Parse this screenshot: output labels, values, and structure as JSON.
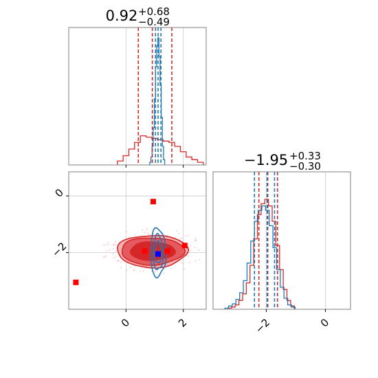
{
  "chart_data": [
    {
      "panel": "top-left",
      "type": "histogram",
      "title": {
        "value": "0.92",
        "plus": "+0.68",
        "minus": "−0.49"
      },
      "xlim": [
        -2.0,
        2.8
      ],
      "series": [
        {
          "name": "",
          "color": "#d62728",
          "bin_edges": [
            -0.3,
            -0.1,
            0.1,
            0.3,
            0.5,
            0.7,
            0.9,
            1.1,
            1.3,
            1.5,
            1.7,
            1.9,
            2.1,
            2.3,
            2.5,
            2.7
          ],
          "density": [
            0.03,
            0.07,
            0.12,
            0.17,
            0.22,
            0.21,
            0.2,
            0.19,
            0.18,
            0.17,
            0.14,
            0.1,
            0.06,
            0.04,
            0.02
          ],
          "quantile_lines": [
            0.43,
            0.92,
            1.6
          ]
        },
        {
          "name": "",
          "color": "#1f77b4",
          "bin_edges": [
            0.83,
            0.87,
            0.91,
            0.95,
            0.99,
            1.03,
            1.07,
            1.11,
            1.15,
            1.19,
            1.23,
            1.27,
            1.31,
            1.35
          ],
          "density": [
            0.02,
            0.06,
            0.14,
            0.28,
            0.5,
            0.74,
            0.9,
            0.96,
            0.82,
            0.6,
            0.36,
            0.14,
            0.04
          ],
          "quantile_lines": [
            1.03,
            1.12,
            1.22
          ]
        }
      ]
    },
    {
      "panel": "bottom-right",
      "type": "histogram",
      "title": {
        "value": "−1.95",
        "plus": "+0.33",
        "minus": "−0.30"
      },
      "xlim": [
        -3.8,
        0.85
      ],
      "xticks": [
        -2,
        0
      ],
      "xtick_labels": [
        "−2",
        "0"
      ],
      "series": [
        {
          "name": "",
          "color": "#d62728",
          "bin_edges": [
            -3.3,
            -3.175,
            -3.05,
            -2.925,
            -2.8,
            -2.675,
            -2.55,
            -2.425,
            -2.3,
            -2.175,
            -2.05,
            -1.925,
            -1.8,
            -1.675,
            -1.55,
            -1.425,
            -1.3,
            -1.175,
            -1.05
          ],
          "density": [
            0.01,
            0.02,
            0.04,
            0.08,
            0.14,
            0.24,
            0.4,
            0.64,
            0.86,
            0.96,
            1.0,
            0.94,
            0.8,
            0.58,
            0.36,
            0.18,
            0.08,
            0.03
          ],
          "quantile_lines": [
            -2.25,
            -1.95,
            -1.62
          ]
        },
        {
          "name": "",
          "color": "#1f77b4",
          "bin_edges": [
            -3.4,
            -3.275,
            -3.15,
            -3.025,
            -2.9,
            -2.775,
            -2.65,
            -2.525,
            -2.4,
            -2.275,
            -2.15,
            -2.025,
            -1.9,
            -1.775,
            -1.65,
            -1.525,
            -1.4,
            -1.275,
            -1.15,
            -1.025
          ],
          "density": [
            0.01,
            0.03,
            0.05,
            0.09,
            0.15,
            0.26,
            0.42,
            0.62,
            0.8,
            0.9,
            0.94,
            0.9,
            0.76,
            0.56,
            0.36,
            0.2,
            0.1,
            0.04,
            0.02
          ],
          "quantile_lines": [
            -2.4,
            -1.97,
            -1.72
          ]
        }
      ]
    },
    {
      "panel": "bottom-left",
      "type": "scatter",
      "xlim": [
        -2.0,
        2.8
      ],
      "ylim": [
        -4.0,
        0.85
      ],
      "xticks": [
        0,
        2
      ],
      "xtick_labels": [
        "0",
        "2"
      ],
      "yticks": [
        0,
        -2
      ],
      "ytick_labels": [
        "0",
        "−2"
      ],
      "grid": true,
      "red_contours": {
        "color": "#d62728",
        "center": [
          0.92,
          -1.95
        ],
        "levels": [
          {
            "rx": 1.23,
            "ry": 0.57,
            "fill": "#f5b2b4"
          },
          {
            "rx": 1.1,
            "ry": 0.48,
            "fill": "#e45a5f"
          },
          {
            "rx": 0.78,
            "ry": 0.32,
            "fill": "#d62728"
          }
        ]
      },
      "blue_contours": {
        "color": "#1f77b4",
        "center": [
          1.12,
          -2.0
        ],
        "levels": [
          {
            "rx": 0.27,
            "ry": 0.85
          },
          {
            "rx": 0.17,
            "ry": 0.62
          },
          {
            "rx": 0.1,
            "ry": 0.38
          }
        ]
      },
      "red_markers": {
        "color": "#ff0000",
        "points": [
          [
            0.95,
            -0.2
          ],
          [
            -1.75,
            -3.05
          ],
          [
            2.05,
            -1.75
          ],
          [
            0.65,
            -1.95
          ],
          [
            1.45,
            -1.95
          ]
        ]
      },
      "blue_marker": {
        "color": "#0000ff",
        "point": [
          1.12,
          -2.05
        ]
      }
    }
  ]
}
